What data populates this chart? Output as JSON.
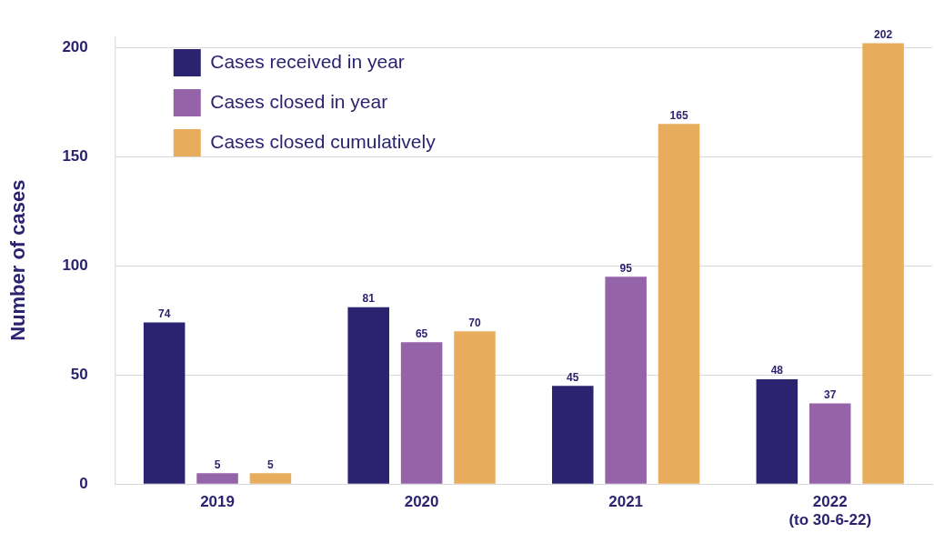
{
  "chart_data": {
    "type": "bar",
    "ylabel": "Number of cases",
    "categories": [
      "2019",
      "2020",
      "2021",
      "2022\n(to 30-6-22)"
    ],
    "series": [
      {
        "name": "Cases received in year",
        "color": "#2b2370",
        "values": [
          74,
          81,
          45,
          48
        ]
      },
      {
        "name": "Cases closed in year",
        "color": "#9563a8",
        "values": [
          5,
          65,
          95,
          37
        ]
      },
      {
        "name": "Cases closed cumulatively",
        "color": "#e8ad5c",
        "values": [
          5,
          70,
          165,
          202
        ]
      }
    ],
    "ylim": [
      0,
      205
    ],
    "yticks": [
      0,
      50,
      100,
      150,
      200
    ],
    "grid": "y",
    "legend": "top left",
    "data_labels": true
  }
}
